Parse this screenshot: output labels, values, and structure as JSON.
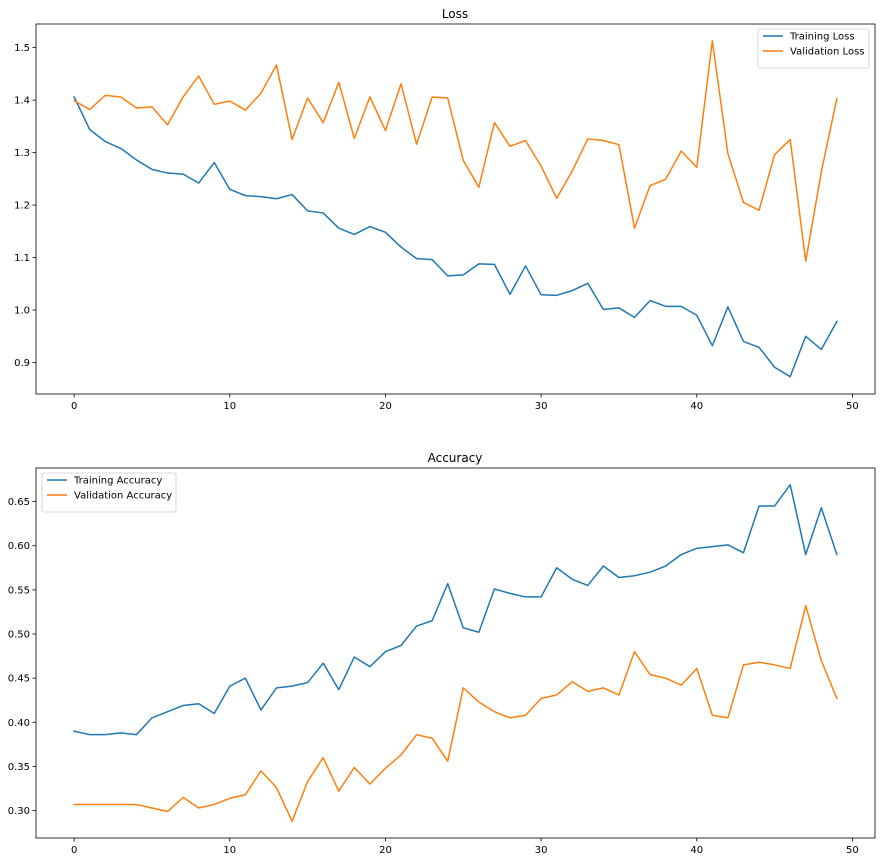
{
  "chart_data": [
    {
      "type": "line",
      "title": "Loss",
      "xlabel": "",
      "ylabel": "",
      "xlim": [
        -2.45,
        51.45
      ],
      "ylim": [
        0.84,
        1.545
      ],
      "xticks": [
        0,
        10,
        20,
        30,
        40,
        50
      ],
      "yticks": [
        0.9,
        1.0,
        1.1,
        1.2,
        1.3,
        1.4,
        1.5
      ],
      "ytick_labels": [
        "0.9",
        "1.0",
        "1.1",
        "1.2",
        "1.3",
        "1.4",
        "1.5"
      ],
      "grid": false,
      "legend_position": "upper right",
      "x": [
        0,
        1,
        2,
        3,
        4,
        5,
        6,
        7,
        8,
        9,
        10,
        11,
        12,
        13,
        14,
        15,
        16,
        17,
        18,
        19,
        20,
        21,
        22,
        23,
        24,
        25,
        26,
        27,
        28,
        29,
        30,
        31,
        32,
        33,
        34,
        35,
        36,
        37,
        38,
        39,
        40,
        41,
        42,
        43,
        44,
        45,
        46,
        47,
        48,
        49
      ],
      "series": [
        {
          "name": "Training Loss",
          "color": "#1f77b4",
          "values": [
            1.406,
            1.344,
            1.321,
            1.308,
            1.286,
            1.268,
            1.261,
            1.259,
            1.242,
            1.281,
            1.23,
            1.218,
            1.216,
            1.212,
            1.22,
            1.189,
            1.185,
            1.156,
            1.144,
            1.159,
            1.148,
            1.12,
            1.098,
            1.096,
            1.065,
            1.067,
            1.088,
            1.087,
            1.03,
            1.084,
            1.029,
            1.028,
            1.037,
            1.051,
            1.001,
            1.004,
            0.986,
            1.018,
            1.007,
            1.007,
            0.99,
            0.932,
            1.006,
            0.94,
            0.929,
            0.891,
            0.873,
            0.95,
            0.925,
            0.978
          ]
        },
        {
          "name": "Validation Loss",
          "color": "#ff7f0e",
          "values": [
            1.399,
            1.382,
            1.409,
            1.406,
            1.385,
            1.387,
            1.353,
            1.406,
            1.446,
            1.392,
            1.398,
            1.381,
            1.413,
            1.467,
            1.325,
            1.404,
            1.357,
            1.434,
            1.327,
            1.406,
            1.342,
            1.431,
            1.316,
            1.406,
            1.404,
            1.285,
            1.234,
            1.357,
            1.312,
            1.323,
            1.274,
            1.213,
            1.265,
            1.326,
            1.323,
            1.315,
            1.156,
            1.237,
            1.249,
            1.303,
            1.272,
            1.513,
            1.298,
            1.205,
            1.19,
            1.296,
            1.325,
            1.093,
            1.263,
            1.403
          ]
        }
      ]
    },
    {
      "type": "line",
      "title": "Accuracy",
      "xlabel": "",
      "ylabel": "",
      "xlim": [
        -2.45,
        51.45
      ],
      "ylim": [
        0.269,
        0.688
      ],
      "xticks": [
        0,
        10,
        20,
        30,
        40,
        50
      ],
      "yticks": [
        0.3,
        0.35,
        0.4,
        0.45,
        0.5,
        0.55,
        0.6,
        0.65
      ],
      "ytick_labels": [
        "0.30",
        "0.35",
        "0.40",
        "0.45",
        "0.50",
        "0.55",
        "0.60",
        "0.65"
      ],
      "grid": false,
      "legend_position": "upper left",
      "x": [
        0,
        1,
        2,
        3,
        4,
        5,
        6,
        7,
        8,
        9,
        10,
        11,
        12,
        13,
        14,
        15,
        16,
        17,
        18,
        19,
        20,
        21,
        22,
        23,
        24,
        25,
        26,
        27,
        28,
        29,
        30,
        31,
        32,
        33,
        34,
        35,
        36,
        37,
        38,
        39,
        40,
        41,
        42,
        43,
        44,
        45,
        46,
        47,
        48,
        49
      ],
      "series": [
        {
          "name": "Training Accuracy",
          "color": "#1f77b4",
          "values": [
            0.39,
            0.386,
            0.386,
            0.388,
            0.386,
            0.405,
            0.412,
            0.419,
            0.421,
            0.41,
            0.441,
            0.45,
            0.414,
            0.439,
            0.441,
            0.445,
            0.467,
            0.437,
            0.474,
            0.463,
            0.48,
            0.487,
            0.509,
            0.515,
            0.557,
            0.507,
            0.502,
            0.551,
            0.546,
            0.542,
            0.542,
            0.575,
            0.562,
            0.555,
            0.577,
            0.564,
            0.566,
            0.57,
            0.577,
            0.59,
            0.597,
            0.599,
            0.601,
            0.592,
            0.645,
            0.645,
            0.669,
            0.59,
            0.643,
            0.59
          ]
        },
        {
          "name": "Validation Accuracy",
          "color": "#ff7f0e",
          "values": [
            0.307,
            0.307,
            0.307,
            0.307,
            0.307,
            0.303,
            0.299,
            0.315,
            0.303,
            0.307,
            0.314,
            0.318,
            0.345,
            0.326,
            0.288,
            0.333,
            0.36,
            0.322,
            0.349,
            0.33,
            0.348,
            0.363,
            0.386,
            0.382,
            0.356,
            0.439,
            0.423,
            0.412,
            0.405,
            0.408,
            0.427,
            0.431,
            0.446,
            0.435,
            0.439,
            0.431,
            0.48,
            0.454,
            0.45,
            0.442,
            0.461,
            0.408,
            0.405,
            0.465,
            0.468,
            0.465,
            0.461,
            0.532,
            0.47,
            0.427
          ]
        }
      ]
    }
  ]
}
